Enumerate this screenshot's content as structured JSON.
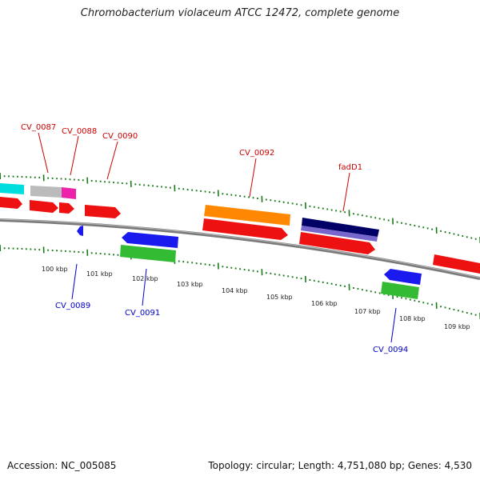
{
  "title": "Chromobacterium violaceum ATCC 12472, complete genome",
  "accession": "Accession: NC_005085",
  "summary": "Topology: circular; Length: 4,751,080 bp; Genes: 4,530",
  "colors": {
    "backbone": "#7a7a7a",
    "tick": "#1a7a1a",
    "forward_label": "#cc0000",
    "reverse_label": "#0000cc",
    "cds": "#ee1111",
    "gene_blue": "#1a1aee",
    "gene_green": "#33bb33",
    "gene_orange": "#ff8800",
    "gene_navy": "#000066",
    "gene_purple": "#7766cc",
    "gene_cyan": "#00dddd",
    "gene_grey": "#bbbbbb",
    "gene_pink": "#ee22aa"
  },
  "scale_labels": [
    "100 kbp",
    "101 kbp",
    "102 kbp",
    "103 kbp",
    "104 kbp",
    "105 kbp",
    "106 kbp",
    "107 kbp",
    "108 kbp",
    "109 kbp"
  ],
  "forward_genes": [
    "CV_0087",
    "CV_0088",
    "CV_0090",
    "CV_0092",
    "fadD1"
  ],
  "reverse_genes": [
    "CV_0089",
    "CV_0091",
    "CV_0094"
  ]
}
